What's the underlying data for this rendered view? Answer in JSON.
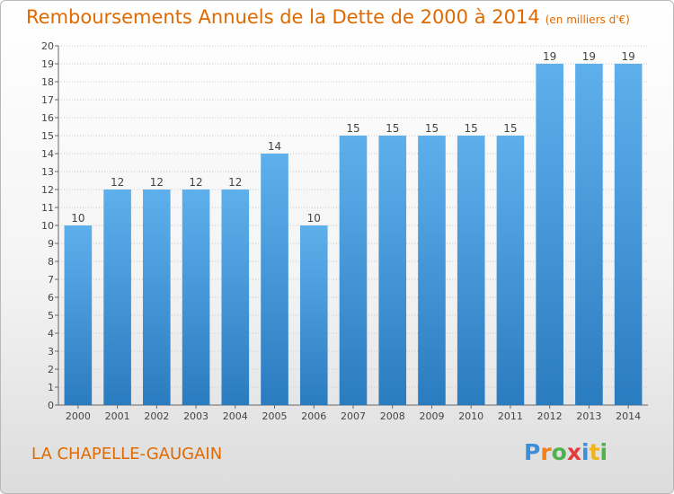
{
  "title": {
    "main": "Remboursements Annuels de la Dette de 2000 à 2014",
    "unit": "(en milliers d'€)"
  },
  "place": "LA CHAPELLE-GAUGAIN",
  "logo": {
    "text": "Proxiti",
    "letters": [
      {
        "ch": "P",
        "color": "#3a8fd8"
      },
      {
        "ch": "r",
        "color": "#f07f1e"
      },
      {
        "ch": "o",
        "color": "#4db34a"
      },
      {
        "ch": "x",
        "color": "#e33b3b"
      },
      {
        "ch": "i",
        "color": "#3a8fd8"
      },
      {
        "ch": "t",
        "color": "#f0b41e"
      },
      {
        "ch": "i",
        "color": "#4db34a"
      }
    ]
  },
  "colors": {
    "title": "#e06a00",
    "bar_light": "#5eb0ec",
    "bar_dark": "#2a7cc0",
    "grid": "#c8c8c8",
    "label": "#444444"
  },
  "chart_data": {
    "type": "bar",
    "title": "Remboursements Annuels de la Dette de 2000 à 2014",
    "xlabel": "",
    "ylabel": "",
    "unit": "(en milliers d'€)",
    "categories": [
      "2000",
      "2001",
      "2002",
      "2003",
      "2004",
      "2005",
      "2006",
      "2007",
      "2008",
      "2009",
      "2010",
      "2011",
      "2012",
      "2013",
      "2014"
    ],
    "values": [
      10,
      12,
      12,
      12,
      12,
      14,
      10,
      15,
      15,
      15,
      15,
      15,
      19,
      19,
      19
    ],
    "value_labels": [
      "10",
      "12",
      "12",
      "12",
      "12",
      "14",
      "10",
      "15",
      "15",
      "15",
      "15",
      "15",
      "19",
      "19",
      "19"
    ],
    "ylim": [
      0,
      20
    ],
    "yticks": [
      0,
      1,
      2,
      3,
      4,
      5,
      6,
      7,
      8,
      9,
      10,
      11,
      12,
      13,
      14,
      15,
      16,
      17,
      18,
      19,
      20
    ],
    "ytick_labels": [
      "0",
      "1",
      "2",
      "3",
      "4",
      "5",
      "6",
      "7",
      "8",
      "9",
      "10",
      "11",
      "12",
      "13",
      "14",
      "15",
      "16",
      "17",
      "18",
      "19",
      "20"
    ],
    "grid": true,
    "legend": "none"
  }
}
